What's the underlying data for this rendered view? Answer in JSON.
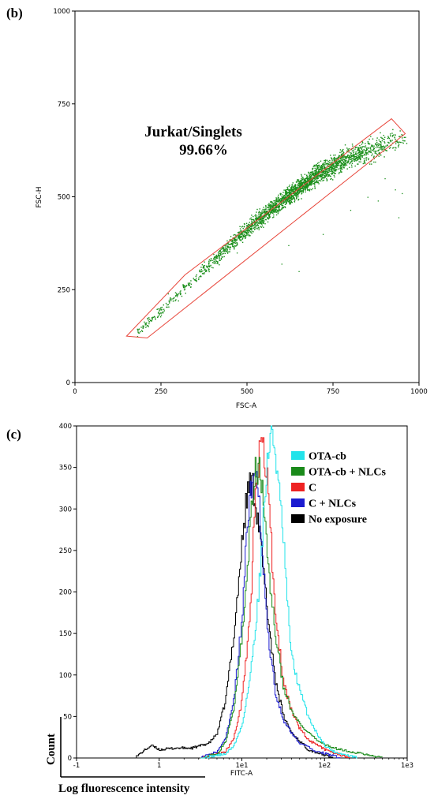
{
  "panel_b": {
    "label": "(b)",
    "gate_name": "Jurkat/Singlets",
    "gate_percent": "99.66%"
  },
  "panel_c": {
    "label": "(c)",
    "y_axis_manual_label": "Count",
    "x_axis_manual_label": "Log fluorescence intensity"
  },
  "colors": {
    "scatter": "#1a8f1a",
    "gate": "#e8473c",
    "OTA-cb": "#22e3ea",
    "OTA-cb + NLCs": "#1a8a1a",
    "C": "#ee2222",
    "C + NLCs": "#1b1bd0",
    "No exposure": "#000000"
  },
  "chart_data": [
    {
      "type": "scatter",
      "xlabel": "FSC-A",
      "ylabel": "FSC-H",
      "xlim": [
        0,
        1000
      ],
      "ylim": [
        0,
        1000
      ],
      "xticks": [
        "0",
        "250",
        "500",
        "750",
        "1000"
      ],
      "yticks": [
        "0",
        "250",
        "500",
        "750",
        "1000"
      ],
      "grid": false,
      "gate_polygon": [
        [
          150,
          125
        ],
        [
          210,
          120
        ],
        [
          960,
          670
        ],
        [
          920,
          710
        ],
        [
          320,
          290
        ],
        [
          150,
          125
        ]
      ],
      "density_ridge": [
        [
          180,
          135
        ],
        [
          300,
          240
        ],
        [
          500,
          415
        ],
        [
          600,
          490
        ],
        [
          700,
          560
        ],
        [
          800,
          610
        ],
        [
          960,
          660
        ]
      ],
      "outliers": [
        [
          270,
          240
        ],
        [
          400,
          310
        ],
        [
          470,
          350
        ],
        [
          600,
          320
        ],
        [
          620,
          370
        ],
        [
          800,
          465
        ],
        [
          850,
          500
        ],
        [
          880,
          490
        ],
        [
          930,
          520
        ],
        [
          940,
          445
        ],
        [
          950,
          510
        ],
        [
          900,
          550
        ],
        [
          650,
          300
        ],
        [
          720,
          400
        ]
      ]
    },
    {
      "type": "line",
      "xlabel": "FITC-A",
      "ylabel": "",
      "xscale": "log",
      "xlim": [
        -1,
        3
      ],
      "ylim": [
        0,
        400
      ],
      "xticks": [
        "-1",
        "1",
        "1e1",
        "1e2",
        "1e3"
      ],
      "yticks": [
        "0",
        "50",
        "100",
        "150",
        "200",
        "250",
        "300",
        "350",
        "400"
      ],
      "legend_position": "top-right",
      "series": [
        {
          "name": "OTA-cb",
          "x": [
            0.5,
            0.8,
            0.9,
            1.0,
            1.1,
            1.2,
            1.25,
            1.3,
            1.35,
            1.4,
            1.5,
            1.55,
            1.6,
            1.7,
            1.8,
            1.9,
            2.0,
            2.1,
            2.2,
            2.4
          ],
          "y": [
            0,
            5,
            15,
            40,
            100,
            200,
            280,
            350,
            400,
            370,
            260,
            180,
            120,
            80,
            50,
            30,
            15,
            8,
            5,
            0
          ]
        },
        {
          "name": "OTA-cb + NLCs",
          "x": [
            0.5,
            0.7,
            0.8,
            0.9,
            1.0,
            1.1,
            1.15,
            1.2,
            1.25,
            1.3,
            1.4,
            1.5,
            1.6,
            1.7,
            1.8,
            1.9,
            2.1,
            2.4,
            2.7
          ],
          "y": [
            0,
            5,
            20,
            60,
            150,
            280,
            340,
            350,
            320,
            250,
            150,
            85,
            55,
            40,
            30,
            22,
            12,
            6,
            0
          ]
        },
        {
          "name": "C",
          "x": [
            0.5,
            0.8,
            0.9,
            1.0,
            1.1,
            1.15,
            1.2,
            1.25,
            1.3,
            1.35,
            1.4,
            1.5,
            1.6,
            1.7,
            1.8,
            2.0,
            2.3
          ],
          "y": [
            0,
            8,
            25,
            70,
            180,
            300,
            360,
            380,
            340,
            260,
            180,
            90,
            55,
            35,
            22,
            10,
            0
          ]
        },
        {
          "name": "C + NLCs",
          "x": [
            0.5,
            0.7,
            0.8,
            0.9,
            1.0,
            1.05,
            1.1,
            1.15,
            1.2,
            1.25,
            1.3,
            1.4,
            1.5,
            1.6,
            1.7,
            1.9,
            2.2
          ],
          "y": [
            0,
            8,
            25,
            70,
            170,
            260,
            320,
            345,
            310,
            240,
            160,
            80,
            45,
            30,
            18,
            8,
            0
          ]
        },
        {
          "name": "No exposure",
          "x": [
            -0.3,
            -0.2,
            -0.1,
            0.0,
            0.2,
            0.4,
            0.6,
            0.7,
            0.8,
            0.9,
            1.0,
            1.05,
            1.1,
            1.15,
            1.2,
            1.3,
            1.4,
            1.5,
            1.6,
            1.8,
            2.1
          ],
          "y": [
            0,
            8,
            15,
            10,
            12,
            12,
            18,
            30,
            70,
            150,
            260,
            310,
            335,
            320,
            280,
            180,
            95,
            50,
            30,
            10,
            0
          ]
        }
      ]
    }
  ]
}
